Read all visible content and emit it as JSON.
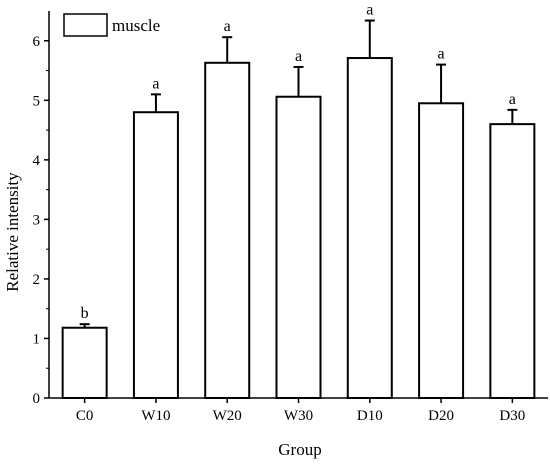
{
  "chart_data": {
    "type": "bar",
    "xlabel": "Group",
    "ylabel": "Relative intensity",
    "ylim": [
      0,
      6.5
    ],
    "yticks": [
      0,
      1,
      2,
      3,
      4,
      5,
      6
    ],
    "categories": [
      "C0",
      "W10",
      "W20",
      "W30",
      "D10",
      "D20",
      "D30"
    ],
    "series": [
      {
        "name": "muscle",
        "values": [
          1.18,
          4.8,
          5.63,
          5.06,
          5.71,
          4.95,
          4.6
        ],
        "errors": [
          0.06,
          0.3,
          0.43,
          0.5,
          0.63,
          0.65,
          0.24
        ],
        "letters": [
          "b",
          "a",
          "a",
          "a",
          "a",
          "a",
          "a"
        ]
      }
    ],
    "legend": "top-left",
    "grid": false,
    "bar_fill": "#ffffff",
    "stroke": "#000000"
  }
}
